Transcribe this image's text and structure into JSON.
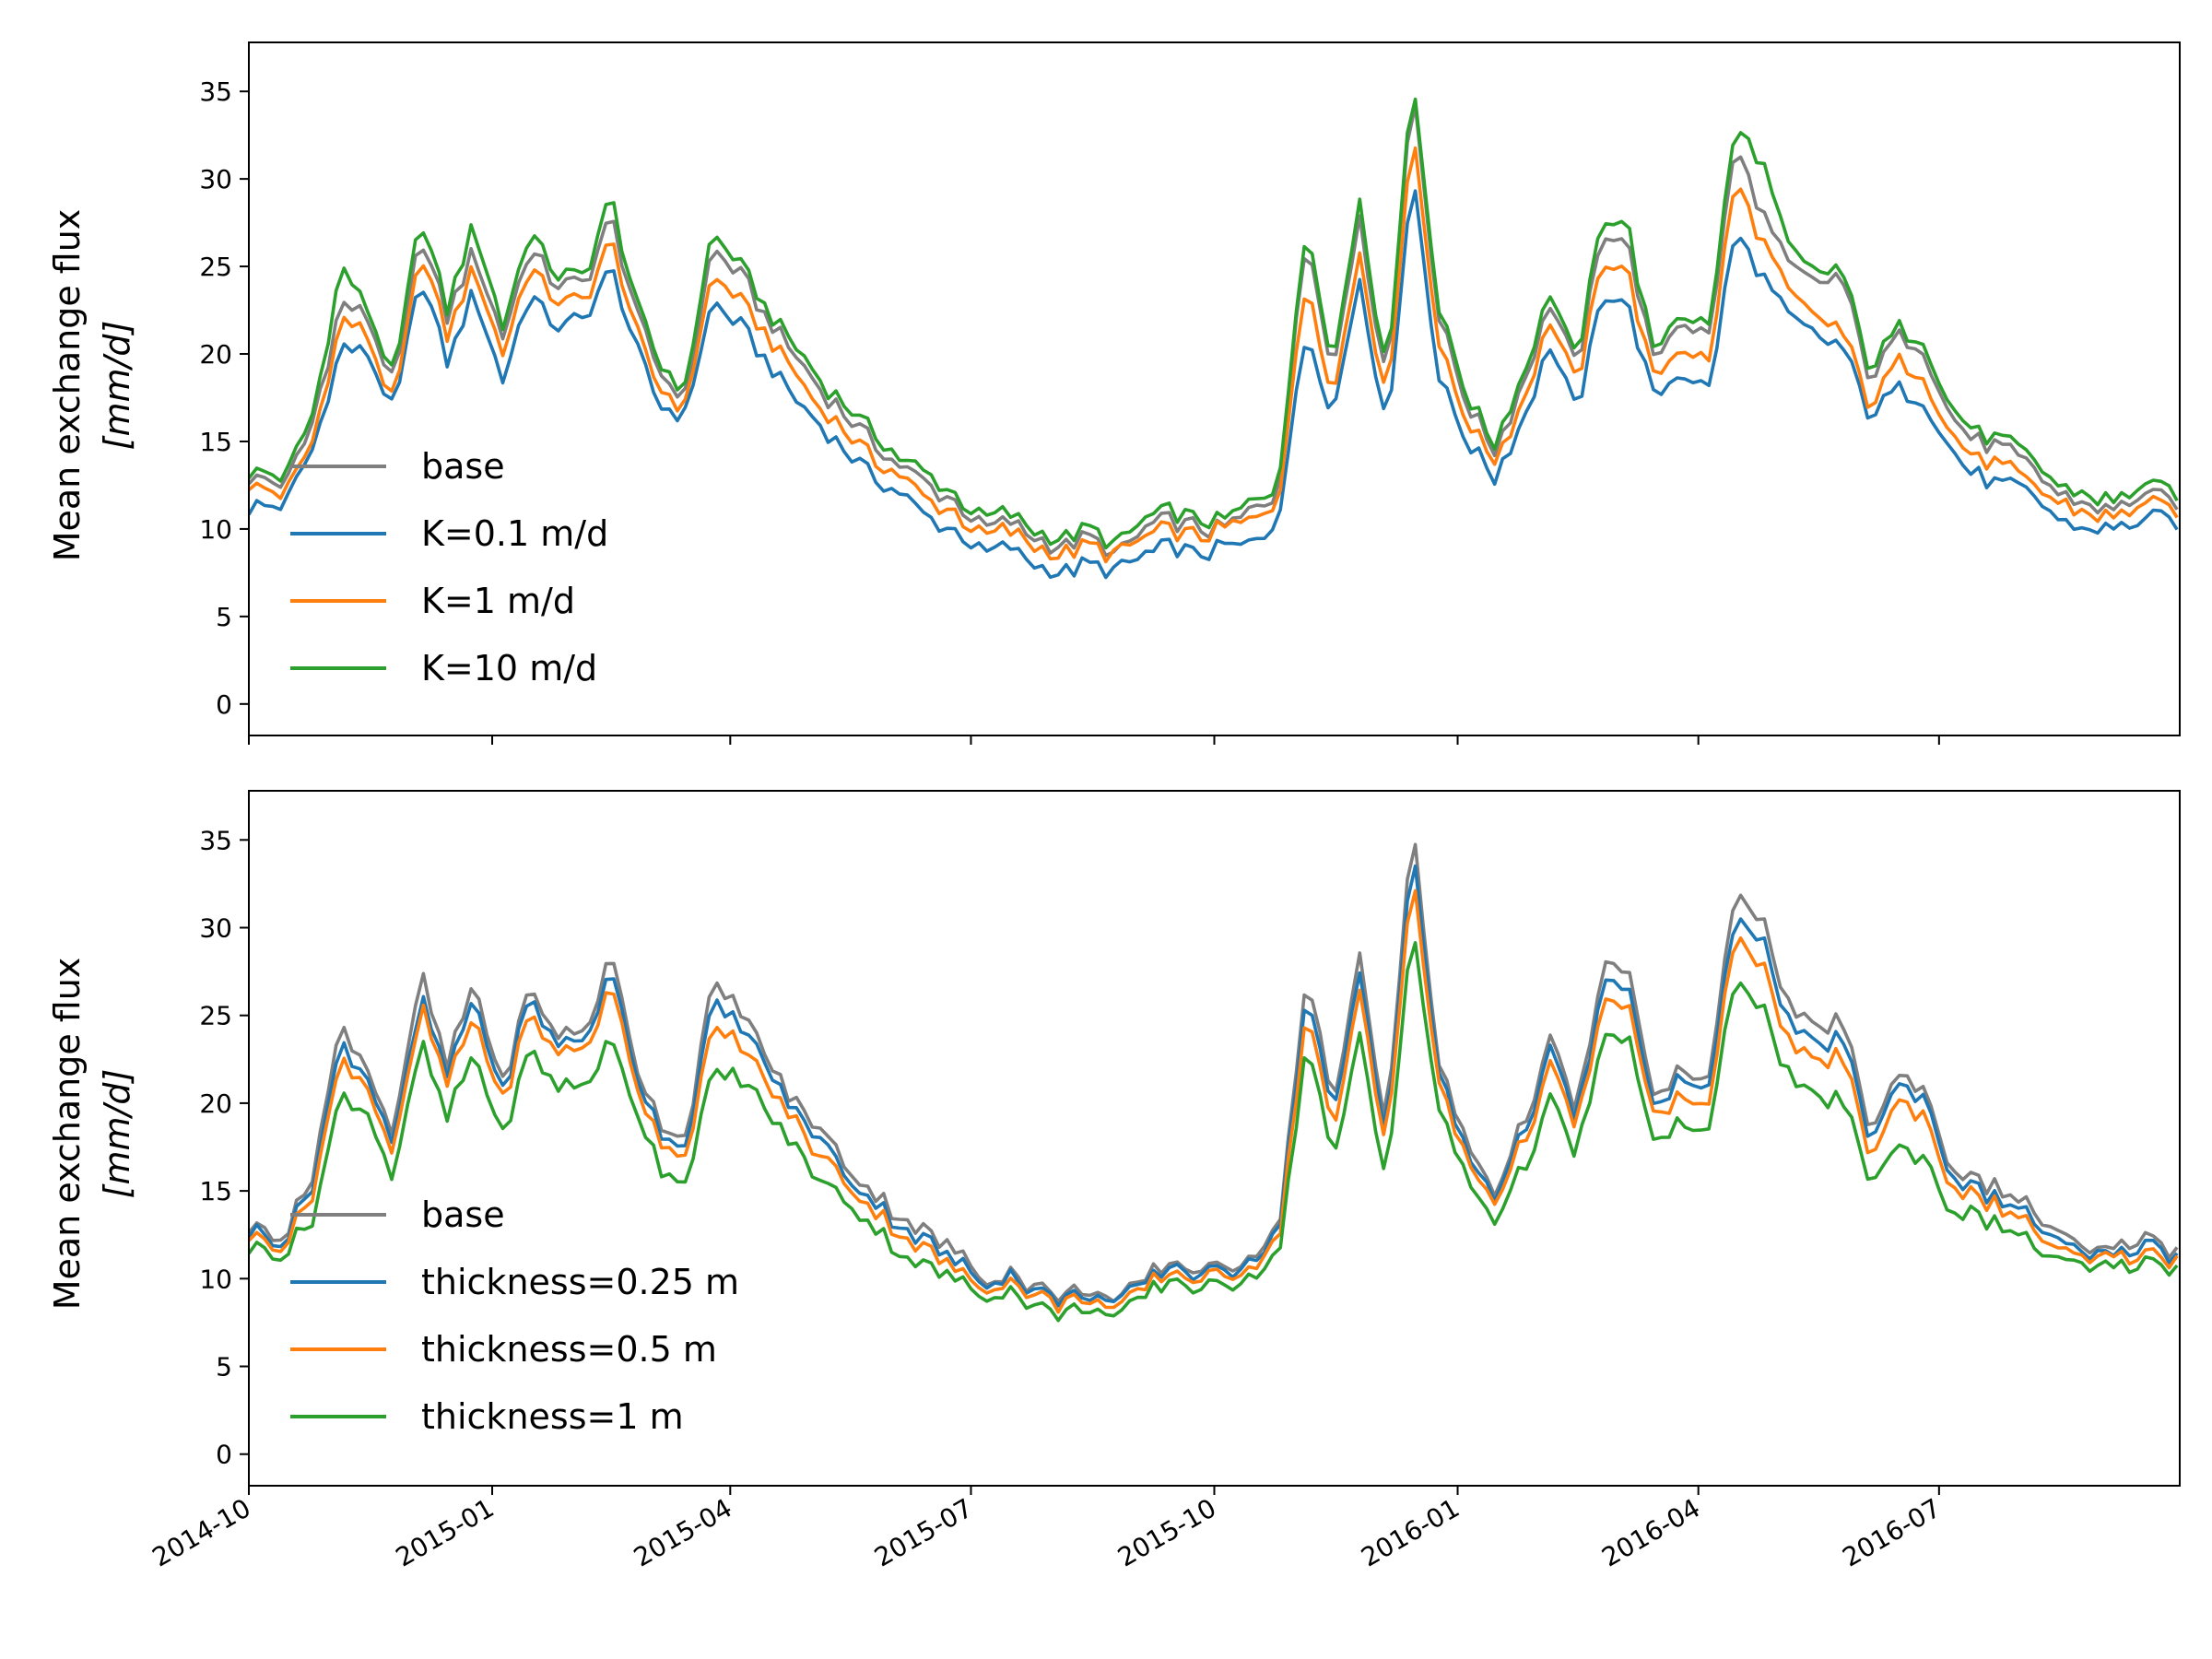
{
  "figure": {
    "x_ticks": [
      "2014-10",
      "2015-01",
      "2015-04",
      "2015-07",
      "2015-10",
      "2016-01",
      "2016-04",
      "2016-07"
    ],
    "y_ticks": [
      "0",
      "5",
      "10",
      "15",
      "20",
      "25",
      "30",
      "35"
    ]
  },
  "chart_data": [
    {
      "type": "line",
      "title": "",
      "xlabel": "",
      "ylabel": "Mean exchange flux",
      "ylabel_unit": "[mm/d]",
      "xlim": [
        "2014-10-01",
        "2016-09-30"
      ],
      "ylim": [
        -1.8,
        37.8
      ],
      "grid": false,
      "legend_position": "lower-left",
      "x_dates": [
        "2014-10-01",
        "2014-10-15",
        "2014-10-25",
        "2014-11-05",
        "2014-11-15",
        "2014-11-25",
        "2014-12-05",
        "2014-12-15",
        "2014-12-25",
        "2015-01-05",
        "2015-01-15",
        "2015-01-25",
        "2015-02-05",
        "2015-02-15",
        "2015-02-25",
        "2015-03-05",
        "2015-03-15",
        "2015-03-25",
        "2015-04-05",
        "2015-04-15",
        "2015-04-25",
        "2015-05-05",
        "2015-05-15",
        "2015-05-25",
        "2015-06-05",
        "2015-06-15",
        "2015-06-25",
        "2015-07-05",
        "2015-07-15",
        "2015-07-25",
        "2015-08-05",
        "2015-08-15",
        "2015-08-25",
        "2015-09-05",
        "2015-09-15",
        "2015-09-25",
        "2015-10-05",
        "2015-10-15",
        "2015-10-25",
        "2015-11-05",
        "2015-11-15",
        "2015-11-25",
        "2015-12-05",
        "2015-12-15",
        "2015-12-25",
        "2016-01-05",
        "2016-01-15",
        "2016-01-25",
        "2016-02-05",
        "2016-02-15",
        "2016-02-25",
        "2016-03-05",
        "2016-03-15",
        "2016-03-25",
        "2016-04-05",
        "2016-04-15",
        "2016-04-25",
        "2016-05-05",
        "2016-05-15",
        "2016-05-25",
        "2016-06-05",
        "2016-06-15",
        "2016-06-25",
        "2016-07-05",
        "2016-07-15",
        "2016-07-25",
        "2016-08-05",
        "2016-08-15",
        "2016-08-25",
        "2016-09-05",
        "2016-09-15",
        "2016-09-30"
      ],
      "series": [
        {
          "name": "base",
          "color": "#7f7f7f",
          "values": [
            13.0,
            12.5,
            16.0,
            23.0,
            22.0,
            18.0,
            27.0,
            22.0,
            26.0,
            21.0,
            26.0,
            24.0,
            24.0,
            28.0,
            22.0,
            19.0,
            17.5,
            26.0,
            24.5,
            22.0,
            20.0,
            18.0,
            16.5,
            15.0,
            13.5,
            12.5,
            11.5,
            10.0,
            10.5,
            9.5,
            9.0,
            9.5,
            8.5,
            10.0,
            10.5,
            10.0,
            10.0,
            11.0,
            12.0,
            27.0,
            19.0,
            28.0,
            18.0,
            35.5,
            22.0,
            17.0,
            14.5,
            18.0,
            23.0,
            19.0,
            27.0,
            26.5,
            19.5,
            22.0,
            21.0,
            32.0,
            28.0,
            25.0,
            24.0,
            24.5,
            18.5,
            21.0,
            20.5,
            16.5,
            15.0,
            14.5,
            13.5,
            12.0,
            11.5,
            11.0,
            12.0,
            11.5
          ]
        },
        {
          "name": "K=0.1 m/d",
          "color": "#1f77b4",
          "values": [
            11.2,
            11.5,
            14.5,
            20.5,
            20.0,
            16.5,
            24.5,
            19.5,
            23.5,
            18.5,
            23.5,
            21.5,
            22.0,
            25.0,
            20.0,
            17.0,
            16.5,
            23.0,
            21.5,
            19.5,
            17.5,
            16.0,
            14.5,
            13.0,
            12.0,
            10.5,
            10.0,
            8.5,
            9.0,
            8.0,
            7.5,
            8.0,
            7.5,
            8.5,
            9.0,
            8.5,
            9.0,
            9.0,
            10.5,
            21.5,
            16.5,
            24.5,
            15.5,
            30.5,
            18.5,
            15.0,
            13.0,
            16.0,
            20.5,
            16.5,
            23.5,
            23.0,
            17.5,
            19.0,
            18.0,
            27.0,
            24.5,
            22.0,
            21.0,
            20.5,
            16.5,
            18.0,
            17.5,
            14.5,
            13.0,
            12.5,
            12.0,
            10.5,
            10.0,
            10.0,
            10.5,
            10.5
          ]
        },
        {
          "name": "K=1 m/d",
          "color": "#ff7f0e",
          "values": [
            12.5,
            12.0,
            15.0,
            22.0,
            21.0,
            17.0,
            26.0,
            21.0,
            25.0,
            20.0,
            25.0,
            23.0,
            23.0,
            26.5,
            21.0,
            18.0,
            17.0,
            24.5,
            23.0,
            21.0,
            19.0,
            17.0,
            15.5,
            14.0,
            13.0,
            11.5,
            11.0,
            9.5,
            10.0,
            9.0,
            8.5,
            9.0,
            8.5,
            9.5,
            10.0,
            9.5,
            10.0,
            10.5,
            11.5,
            24.5,
            17.5,
            26.0,
            17.0,
            33.0,
            20.5,
            16.0,
            14.0,
            17.0,
            22.0,
            18.0,
            25.5,
            25.0,
            18.5,
            20.5,
            19.5,
            30.0,
            26.5,
            23.5,
            22.0,
            21.5,
            17.0,
            19.5,
            19.0,
            15.5,
            14.0,
            13.5,
            12.5,
            11.5,
            11.0,
            10.5,
            11.5,
            11.0
          ]
        },
        {
          "name": "K=10 m/d",
          "color": "#2ca02c",
          "values": [
            13.2,
            13.0,
            16.5,
            25.0,
            22.5,
            18.5,
            28.0,
            22.5,
            27.5,
            21.5,
            27.0,
            24.5,
            24.5,
            29.0,
            22.5,
            19.5,
            18.0,
            27.0,
            25.0,
            22.5,
            20.5,
            18.5,
            17.0,
            15.5,
            14.0,
            13.0,
            12.0,
            10.5,
            11.0,
            10.0,
            9.5,
            10.0,
            9.0,
            10.5,
            11.0,
            10.5,
            10.5,
            11.5,
            12.5,
            27.5,
            19.5,
            29.0,
            18.5,
            36.0,
            22.5,
            17.5,
            15.0,
            18.5,
            23.5,
            19.5,
            28.0,
            27.5,
            20.0,
            22.5,
            21.5,
            33.0,
            31.0,
            26.0,
            24.5,
            25.0,
            19.0,
            21.5,
            21.0,
            17.0,
            15.5,
            15.0,
            14.0,
            12.5,
            12.0,
            11.5,
            12.5,
            12.0
          ]
        }
      ]
    },
    {
      "type": "line",
      "title": "",
      "xlabel": "",
      "ylabel": "Mean exchange flux",
      "ylabel_unit": "[mm/d]",
      "xlim": [
        "2014-10-01",
        "2016-09-30"
      ],
      "ylim": [
        -1.8,
        37.8
      ],
      "grid": false,
      "legend_position": "lower-left",
      "x_dates": [
        "2014-10-01",
        "2014-10-15",
        "2014-10-25",
        "2014-11-05",
        "2014-11-15",
        "2014-11-25",
        "2014-12-05",
        "2014-12-15",
        "2014-12-25",
        "2015-01-05",
        "2015-01-15",
        "2015-01-25",
        "2015-02-05",
        "2015-02-15",
        "2015-02-25",
        "2015-03-05",
        "2015-03-15",
        "2015-03-25",
        "2015-04-05",
        "2015-04-15",
        "2015-04-25",
        "2015-05-05",
        "2015-05-15",
        "2015-05-25",
        "2015-06-05",
        "2015-06-15",
        "2015-06-25",
        "2015-07-05",
        "2015-07-15",
        "2015-07-25",
        "2015-08-05",
        "2015-08-15",
        "2015-08-25",
        "2015-09-05",
        "2015-09-15",
        "2015-09-25",
        "2015-10-05",
        "2015-10-15",
        "2015-10-25",
        "2015-11-05",
        "2015-11-15",
        "2015-11-25",
        "2015-12-05",
        "2015-12-15",
        "2015-12-25",
        "2016-01-05",
        "2016-01-15",
        "2016-01-25",
        "2016-02-05",
        "2016-02-15",
        "2016-02-25",
        "2016-03-05",
        "2016-03-15",
        "2016-03-25",
        "2016-04-05",
        "2016-04-15",
        "2016-04-25",
        "2016-05-05",
        "2016-05-15",
        "2016-05-25",
        "2016-06-05",
        "2016-06-15",
        "2016-06-25",
        "2016-07-05",
        "2016-07-15",
        "2016-07-25",
        "2016-08-05",
        "2016-08-15",
        "2016-08-25",
        "2016-09-05",
        "2016-09-15",
        "2016-09-30"
      ],
      "series": [
        {
          "name": "base",
          "color": "#7f7f7f",
          "values": [
            13.0,
            12.5,
            16.0,
            24.5,
            22.0,
            18.0,
            27.5,
            22.0,
            27.0,
            21.0,
            26.5,
            24.0,
            24.0,
            28.5,
            22.0,
            19.0,
            18.0,
            26.5,
            25.5,
            22.5,
            20.0,
            18.5,
            16.5,
            15.0,
            13.5,
            12.5,
            11.5,
            10.0,
            10.5,
            9.5,
            9.0,
            9.5,
            8.5,
            10.0,
            11.0,
            10.5,
            10.5,
            11.5,
            12.5,
            27.5,
            19.5,
            28.5,
            18.5,
            35.8,
            22.0,
            17.5,
            15.0,
            18.5,
            23.5,
            19.5,
            27.5,
            28.0,
            20.0,
            22.0,
            21.0,
            32.5,
            30.5,
            25.5,
            24.0,
            25.0,
            18.5,
            21.5,
            21.0,
            16.5,
            15.5,
            15.0,
            14.0,
            12.5,
            11.5,
            11.5,
            12.5,
            11.5
          ]
        },
        {
          "name": "thickness=0.25 m",
          "color": "#1f77b4",
          "values": [
            12.7,
            12.3,
            15.5,
            23.5,
            21.5,
            17.5,
            26.0,
            21.5,
            26.0,
            20.5,
            26.0,
            23.5,
            23.5,
            27.5,
            21.5,
            18.5,
            17.5,
            25.5,
            24.5,
            22.0,
            19.5,
            18.0,
            16.0,
            14.5,
            13.0,
            12.0,
            11.0,
            9.8,
            10.3,
            9.3,
            8.8,
            9.3,
            8.3,
            9.8,
            10.8,
            10.3,
            10.3,
            11.3,
            12.2,
            26.5,
            19.0,
            27.5,
            18.0,
            34.5,
            21.5,
            17.0,
            14.8,
            18.0,
            22.8,
            19.0,
            26.5,
            27.0,
            19.5,
            21.5,
            20.5,
            31.0,
            29.5,
            24.5,
            23.0,
            24.0,
            18.0,
            21.0,
            20.5,
            16.0,
            15.0,
            14.5,
            13.5,
            12.0,
            11.2,
            11.2,
            12.0,
            11.3
          ]
        },
        {
          "name": "thickness=0.5 m",
          "color": "#ff7f0e",
          "values": [
            12.4,
            12.0,
            15.0,
            22.5,
            21.0,
            17.0,
            25.5,
            21.0,
            25.0,
            20.0,
            25.0,
            23.0,
            23.0,
            26.5,
            21.0,
            18.0,
            17.0,
            24.0,
            23.5,
            21.0,
            19.0,
            17.0,
            15.5,
            14.0,
            12.5,
            11.5,
            10.5,
            9.5,
            10.0,
            9.0,
            8.5,
            9.0,
            8.0,
            9.5,
            10.5,
            10.0,
            10.0,
            11.0,
            11.8,
            25.5,
            18.0,
            26.5,
            17.5,
            33.0,
            21.0,
            16.5,
            14.5,
            17.5,
            22.0,
            18.5,
            25.5,
            26.0,
            19.0,
            20.5,
            19.5,
            30.0,
            28.0,
            23.5,
            22.0,
            23.0,
            17.0,
            20.0,
            19.5,
            15.5,
            14.5,
            14.0,
            13.0,
            11.5,
            11.0,
            11.0,
            11.5,
            11.0
          ]
        },
        {
          "name": "thickness=1 m",
          "color": "#2ca02c",
          "values": [
            11.7,
            11.5,
            13.5,
            20.5,
            19.5,
            15.5,
            23.5,
            19.0,
            23.0,
            18.0,
            23.0,
            21.0,
            21.0,
            23.5,
            19.5,
            16.5,
            15.5,
            21.5,
            21.5,
            19.5,
            17.5,
            15.5,
            14.5,
            13.0,
            11.5,
            10.5,
            10.0,
            9.0,
            9.5,
            8.5,
            8.0,
            8.5,
            7.5,
            9.0,
            10.0,
            9.5,
            9.5,
            10.5,
            11.0,
            23.5,
            16.5,
            24.0,
            15.5,
            30.0,
            19.5,
            15.5,
            13.5,
            16.0,
            20.0,
            17.0,
            23.5,
            24.0,
            17.5,
            19.0,
            18.0,
            27.5,
            25.5,
            21.5,
            20.0,
            20.5,
            15.5,
            17.5,
            17.0,
            14.0,
            13.5,
            13.0,
            12.0,
            11.0,
            10.5,
            10.5,
            11.0,
            10.5
          ]
        }
      ]
    }
  ]
}
